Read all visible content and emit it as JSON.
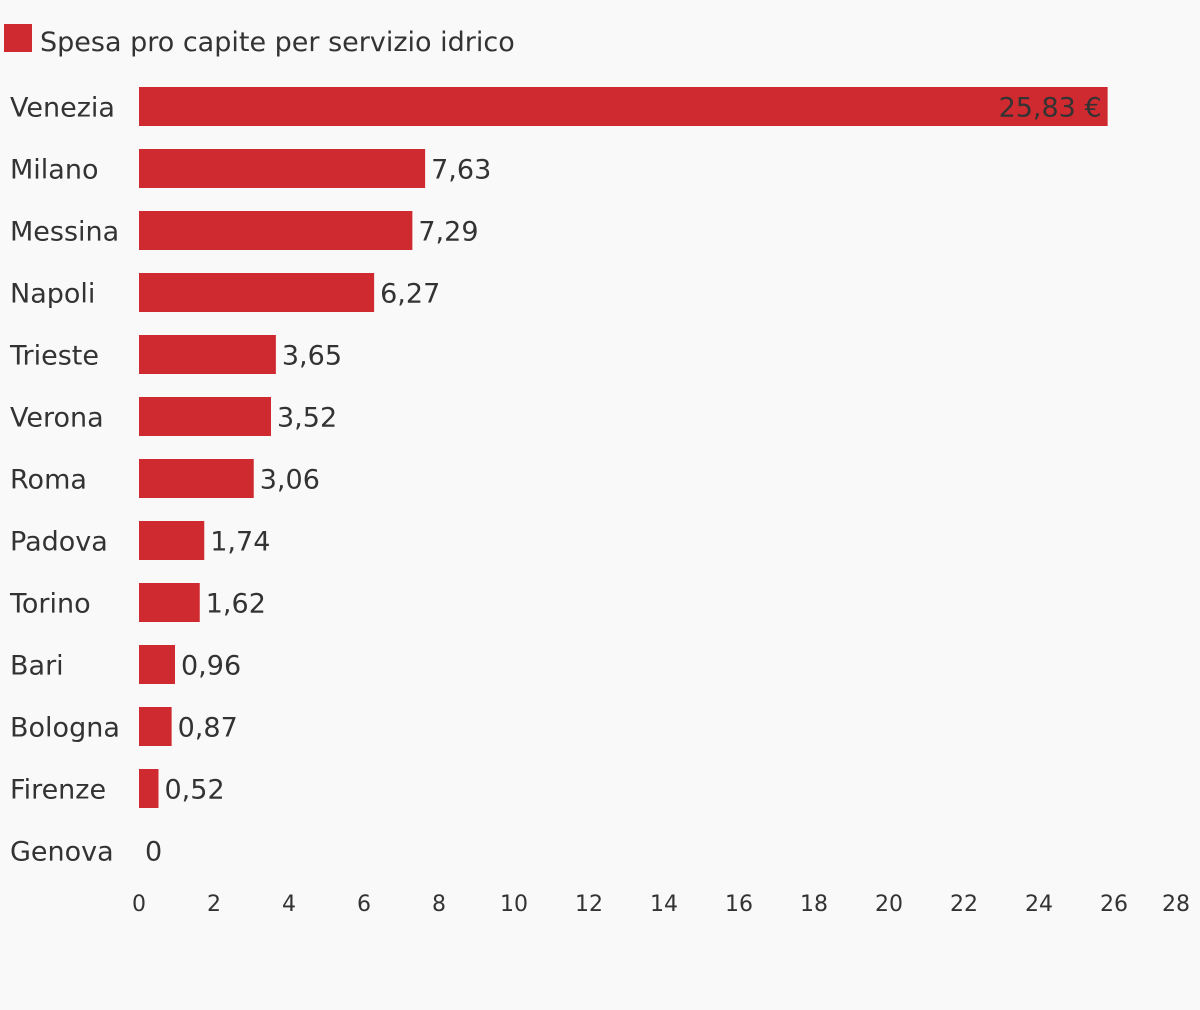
{
  "chart_data": {
    "type": "bar",
    "orientation": "horizontal",
    "legend": {
      "position": "top-left"
    },
    "series": [
      {
        "name": "Spesa pro capite per servizio idrico",
        "color": "#cf2a30",
        "values": [
          25.83,
          7.63,
          7.29,
          6.27,
          3.65,
          3.52,
          3.06,
          1.74,
          1.62,
          0.96,
          0.87,
          0.52,
          0
        ]
      }
    ],
    "categories": [
      "Venezia",
      "Milano",
      "Messina",
      "Napoli",
      "Trieste",
      "Verona",
      "Roma",
      "Padova",
      "Torino",
      "Bari",
      "Bologna",
      "Firenze",
      "Genova"
    ],
    "value_labels": [
      "25,83 €",
      "7,63",
      "7,29",
      "6,27",
      "3,65",
      "3,52",
      "3,06",
      "1,74",
      "1,62",
      "0,96",
      "0,87",
      "0,52",
      "0"
    ],
    "xlim": [
      0,
      28
    ],
    "xticks": [
      0,
      2,
      4,
      6,
      8,
      10,
      12,
      14,
      16,
      18,
      20,
      22,
      24,
      26,
      28
    ],
    "grid": false
  }
}
